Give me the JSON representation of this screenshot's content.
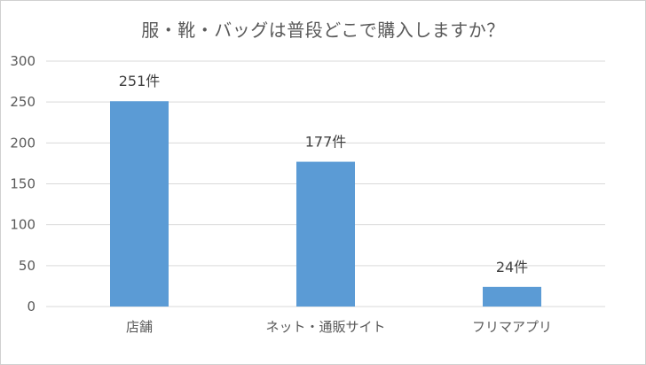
{
  "chart_data": {
    "type": "bar",
    "title": "服・靴・バッグは普段どこで購入しますか？",
    "categories": [
      "店舗",
      "ネット・通販サイト",
      "フリマアプリ"
    ],
    "values": [
      251,
      177,
      24
    ],
    "data_labels": [
      "251件",
      "177件",
      "24件"
    ],
    "ylim": [
      0,
      300
    ],
    "yticks": [
      0,
      50,
      100,
      150,
      200,
      250,
      300
    ],
    "grid": true,
    "bar_color": "#5b9bd5",
    "xlabel": "",
    "ylabel": ""
  }
}
